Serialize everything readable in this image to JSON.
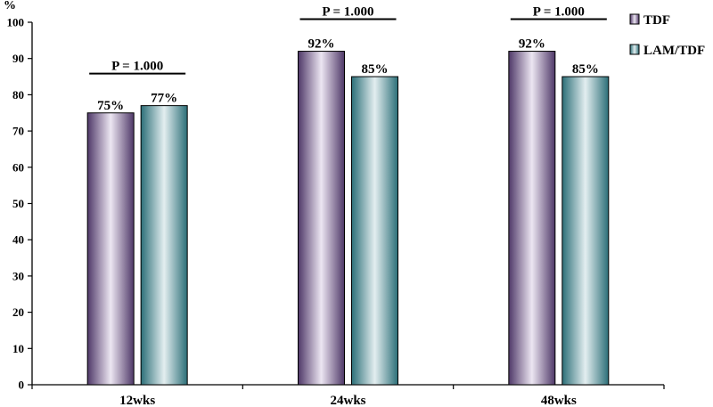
{
  "chart_data": {
    "type": "bar",
    "unit_label": "%",
    "categories": [
      "12wks",
      "24wks",
      "48wks"
    ],
    "series": [
      {
        "name": "TDF",
        "values": [
          75,
          92,
          92
        ],
        "labels": [
          "75%",
          "92%",
          "92%"
        ]
      },
      {
        "name": "LAM/TDF",
        "values": [
          77,
          85,
          85
        ],
        "labels": [
          "77%",
          "85%",
          "85%"
        ]
      }
    ],
    "p_values": [
      "P = 1.000",
      "P = 1.000",
      "P = 1.000"
    ],
    "ylim": [
      0,
      100
    ],
    "yticks": [
      0,
      10,
      20,
      30,
      40,
      50,
      60,
      70,
      80,
      90,
      100
    ],
    "legend": "top-right",
    "grid": false,
    "colors": {
      "TDF": {
        "dark": "#4f3868",
        "light": "#ece6f2"
      },
      "LAM/TDF": {
        "dark": "#2c6f78",
        "light": "#e3eef0"
      }
    }
  }
}
